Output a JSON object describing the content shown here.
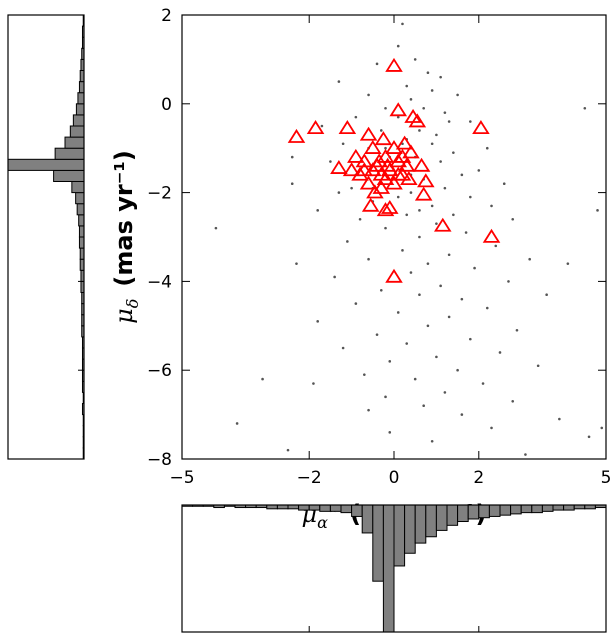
{
  "chart_data": [
    {
      "type": "scatter",
      "xlabel": {
        "symbol": "μ",
        "sub": "α",
        "sup": "⋆",
        "unit": "(mas yr⁻¹)"
      },
      "ylabel": {
        "symbol": "μ",
        "sub": "δ",
        "unit": "(mas yr⁻¹)"
      },
      "xlim": [
        -5,
        5
      ],
      "ylim": [
        -8,
        2
      ],
      "xticks": [
        {
          "value": -5,
          "label": "−5"
        },
        {
          "value": -2,
          "label": "−2"
        },
        0,
        2,
        5
      ],
      "yticks": [
        {
          "value": -8,
          "label": "−8"
        },
        {
          "value": -6,
          "label": "−6"
        },
        {
          "value": -4,
          "label": "−4"
        },
        {
          "value": -2,
          "label": "−2"
        },
        0,
        2
      ],
      "series": [
        {
          "marker": "dot",
          "color": "#555555",
          "x": [
            0.2,
            0.1,
            0.5,
            -0.4,
            0.8,
            1.1,
            -1.3,
            0.3,
            0.9,
            -0.6,
            1.5,
            0.4,
            -0.2,
            0.7,
            1.2,
            -0.9,
            0.1,
            1.8,
            -1.7,
            0.6,
            -0.3,
            1.0,
            0.3,
            -1.2,
            0.9,
            2.2,
            -0.6,
            1.4,
            0.5,
            -2.4,
            -1.5,
            1.1,
            0.2,
            2.0,
            -0.9,
            1.6,
            0.7,
            -2.4,
            2.6,
            1.2,
            -1.3,
            0.4,
            1.8,
            -0.5,
            0.9,
            2.3,
            -1.8,
            1.4,
            0.3,
            -0.8,
            2.8,
            1.0,
            -0.2,
            1.7,
            0.6,
            -1.1,
            2.4,
            0.2,
            1.3,
            -0.6,
            3.2,
            0.8,
            -2.3,
            1.9,
            0.4,
            -1.4,
            2.7,
            1.1,
            -0.3,
            0.6,
            3.6,
            1.6,
            -0.9,
            2.2,
            0.1,
            1.3,
            -1.8,
            0.8,
            2.9,
            -0.4,
            1.8,
            0.3,
            -1.2,
            2.5,
            1.0,
            -0.1,
            3.4,
            1.5,
            -0.7,
            0.5,
            -3.1,
            2.1,
            -1.9,
            1.2,
            -0.2,
            2.8,
            0.7,
            -0.6,
            1.6,
            3.9,
            -3.7,
            2.3,
            4.6,
            0.9,
            -2.5,
            3.1,
            4.9,
            -0.1,
            0.2,
            -0.1,
            0.4,
            -0.5,
            0.1,
            0.8,
            -0.2,
            0.6,
            -1.0,
            1.3,
            4.5,
            4.8,
            -4.2,
            4.1
          ],
          "values": [
            1.8,
            1.3,
            1.0,
            0.9,
            0.7,
            0.6,
            0.5,
            0.4,
            0.3,
            0.2,
            0.2,
            0.1,
            -0.1,
            -0.1,
            -0.2,
            -0.3,
            -0.3,
            -0.4,
            -0.5,
            -0.6,
            -0.6,
            -0.7,
            -0.8,
            -0.9,
            -0.9,
            -1.0,
            -1.0,
            -1.1,
            -1.2,
            -1.2,
            -1.3,
            -1.3,
            -1.4,
            -1.5,
            -1.6,
            -1.6,
            -1.7,
            -1.8,
            -1.8,
            -1.9,
            -2.0,
            -2.0,
            -2.1,
            -2.2,
            -2.3,
            -2.3,
            -2.4,
            -2.5,
            -2.5,
            -2.6,
            -2.6,
            -2.7,
            -2.8,
            -2.9,
            -3.0,
            -3.1,
            -3.2,
            -3.3,
            -3.4,
            -3.5,
            -3.5,
            -3.6,
            -3.6,
            -3.7,
            -3.8,
            -3.9,
            -4.0,
            -4.1,
            -4.2,
            -4.3,
            -4.3,
            -4.4,
            -4.5,
            -4.6,
            -4.7,
            -4.8,
            -4.9,
            -5.0,
            -5.1,
            -5.2,
            -5.3,
            -5.4,
            -5.5,
            -5.6,
            -5.7,
            -5.8,
            -5.9,
            -6.0,
            -6.1,
            -6.2,
            -6.2,
            -6.3,
            -6.3,
            -6.5,
            -6.6,
            -6.7,
            -6.8,
            -6.9,
            -7.0,
            -7.1,
            -7.2,
            -7.3,
            -7.5,
            -7.6,
            -7.8,
            -7.9,
            -7.3,
            -7.4,
            -0.9,
            -1.2,
            -1.6,
            -1.9,
            -2.1,
            -1.5,
            -1.0,
            -2.4,
            -1.9,
            -0.4,
            -0.1,
            -2.4,
            -2.8,
            -3.6
          ]
        },
        {
          "marker": "triangle",
          "color": "#ff0000",
          "x": [
            0.0,
            0.1,
            0.45,
            0.55,
            -2.3,
            -1.85,
            -1.1,
            2.05,
            -1.3,
            0.65,
            0.75,
            0.7,
            1.15,
            2.3,
            0.0,
            -0.55,
            -0.2,
            -0.1,
            -0.9,
            -0.7,
            -0.6,
            -0.5,
            -0.4,
            -0.3,
            -0.2,
            -0.1,
            0.0,
            0.1,
            0.2,
            0.3,
            -0.8,
            -0.6,
            -0.5,
            -0.3,
            -0.2,
            0.0,
            0.2,
            0.35,
            -1.0,
            -0.45,
            -0.35,
            0.1,
            -0.15,
            0.4,
            -0.7,
            0.25,
            -0.25
          ],
          "values": [
            0.85,
            -0.15,
            -0.3,
            -0.4,
            -0.75,
            -0.55,
            -0.55,
            -0.55,
            -1.45,
            -1.4,
            -1.75,
            -2.05,
            -2.75,
            -3.0,
            -3.9,
            -2.3,
            -2.4,
            -2.35,
            -1.2,
            -1.3,
            -0.7,
            -1.0,
            -1.4,
            -1.6,
            -1.2,
            -1.5,
            -1.0,
            -1.3,
            -1.6,
            -1.4,
            -1.6,
            -1.8,
            -1.5,
            -1.9,
            -1.7,
            -1.8,
            -1.2,
            -1.7,
            -1.5,
            -2.0,
            -1.3,
            -1.6,
            -1.4,
            -1.1,
            -1.5,
            -0.9,
            -0.8
          ]
        }
      ]
    },
    {
      "type": "histogram",
      "orientation": "horizontal",
      "count_direction": "left",
      "color": "#808080",
      "ylim": [
        -8,
        2
      ],
      "xlim": [
        0,
        100
      ],
      "bins": [
        -8,
        -7.75,
        -7.5,
        -7.25,
        -7,
        -6.75,
        -6.5,
        -6.25,
        -6,
        -5.75,
        -5.5,
        -5.25,
        -5,
        -4.75,
        -4.5,
        -4.25,
        -4,
        -3.75,
        -3.5,
        -3.25,
        -3,
        -2.75,
        -2.5,
        -2.25,
        -2,
        -1.75,
        -1.5,
        -1.25,
        -1,
        -0.75,
        -0.5,
        -0.25,
        0,
        0.25,
        0.5,
        0.75,
        1,
        1.25,
        1.5,
        1.75,
        2
      ],
      "counts": [
        1,
        1,
        1,
        1,
        2,
        1,
        2,
        2,
        2,
        2,
        2,
        3,
        3,
        3,
        3,
        4,
        4,
        5,
        5,
        6,
        6,
        7,
        9,
        11,
        16,
        40,
        100,
        38,
        25,
        18,
        14,
        10,
        8,
        6,
        5,
        4,
        3,
        2,
        2,
        1
      ]
    },
    {
      "type": "histogram",
      "orientation": "vertical",
      "count_direction": "down",
      "color": "#808080",
      "xlim": [
        -5,
        5
      ],
      "ylim": [
        0,
        100
      ],
      "bins": [
        -5,
        -4.75,
        -4.5,
        -4.25,
        -4,
        -3.75,
        -3.5,
        -3.25,
        -3,
        -2.75,
        -2.5,
        -2.25,
        -2,
        -1.75,
        -1.5,
        -1.25,
        -1,
        -0.75,
        -0.5,
        -0.25,
        0,
        0.25,
        0.5,
        0.75,
        1,
        1.25,
        1.5,
        1.75,
        2,
        2.25,
        2.5,
        2.75,
        3,
        3.25,
        3.5,
        3.75,
        4,
        4.25,
        4.5,
        4.75,
        5
      ],
      "counts": [
        1,
        1,
        1,
        2,
        1,
        2,
        2,
        2,
        3,
        3,
        3,
        4,
        4,
        5,
        5,
        6,
        9,
        22,
        60,
        100,
        48,
        38,
        30,
        25,
        20,
        16,
        13,
        11,
        10,
        9,
        8,
        7,
        6,
        6,
        5,
        4,
        4,
        3,
        3,
        2
      ]
    }
  ]
}
